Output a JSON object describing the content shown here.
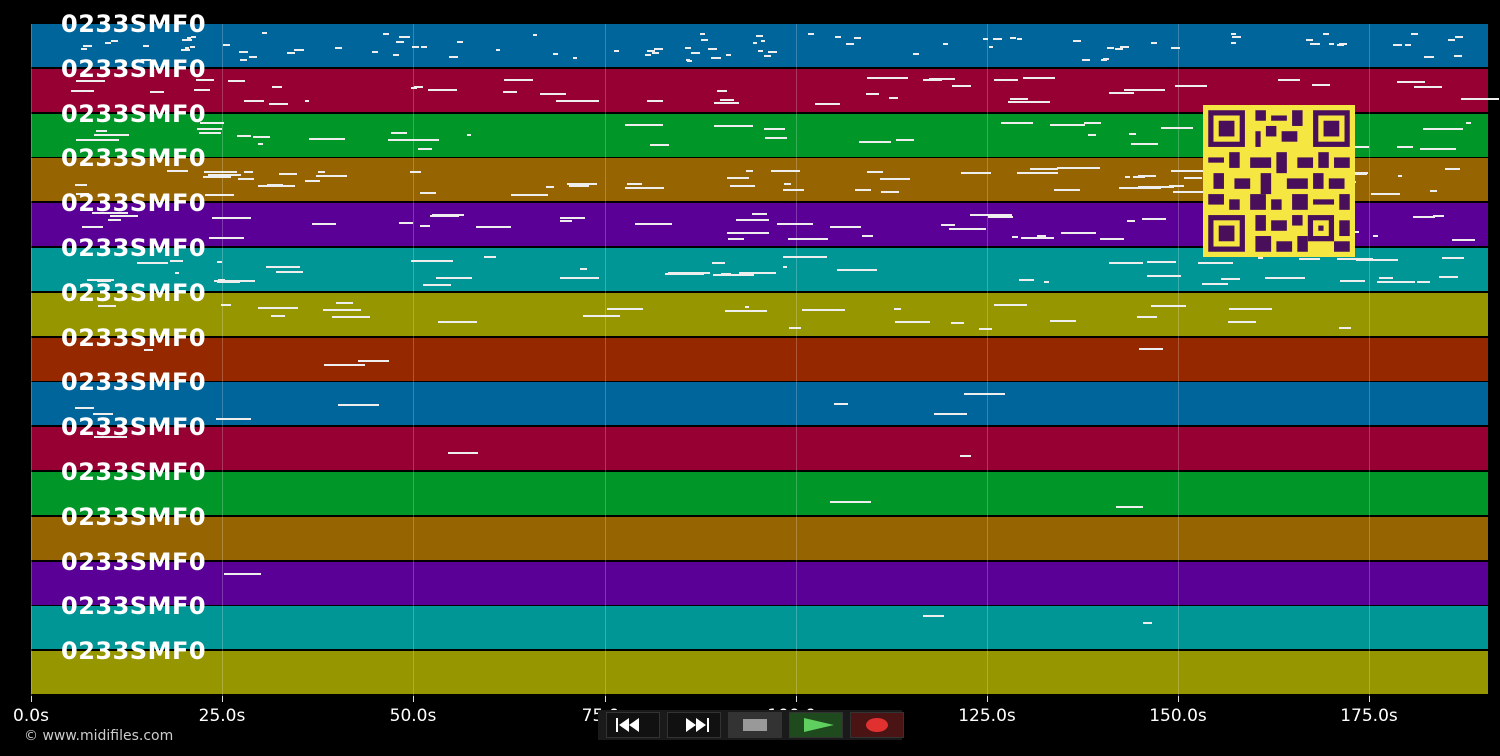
{
  "tracks": [
    {
      "label": "0233SMF0",
      "color": "#00659a"
    },
    {
      "label": "0233SMF0",
      "color": "#960032"
    },
    {
      "label": "0233SMF0",
      "color": "#009628"
    },
    {
      "label": "0233SMF0",
      "color": "#966400"
    },
    {
      "label": "0233SMF0",
      "color": "#5a0096"
    },
    {
      "label": "0233SMF0",
      "color": "#009696"
    },
    {
      "label": "0233SMF0",
      "color": "#969600"
    },
    {
      "label": "0233SMF0",
      "color": "#962800"
    },
    {
      "label": "0233SMF0",
      "color": "#00659a"
    },
    {
      "label": "0233SMF0",
      "color": "#960032"
    },
    {
      "label": "0233SMF0",
      "color": "#009628"
    },
    {
      "label": "0233SMF0",
      "color": "#966400"
    },
    {
      "label": "0233SMF0",
      "color": "#5a0096"
    },
    {
      "label": "0233SMF0",
      "color": "#009696"
    },
    {
      "label": "0233SMF0",
      "color": "#969600"
    }
  ],
  "time_axis": {
    "max_seconds": 190.5,
    "ticks": [
      {
        "value": 0,
        "label": "0.0s"
      },
      {
        "value": 25,
        "label": "25.0s"
      },
      {
        "value": 50,
        "label": "50.0s"
      },
      {
        "value": 75,
        "label": "75.0s"
      },
      {
        "value": 100,
        "label": "100.0s"
      },
      {
        "value": 125,
        "label": "125.0s"
      },
      {
        "value": 150,
        "label": "150.0s"
      },
      {
        "value": 175,
        "label": "175.0s"
      }
    ]
  },
  "copyright": "© www.midifiles.com",
  "controls": [
    {
      "name": "rewind-button",
      "icon": "rewind-icon"
    },
    {
      "name": "fast-forward-button",
      "icon": "fast-forward-icon"
    },
    {
      "name": "stop-button",
      "icon": "stop-icon"
    },
    {
      "name": "play-button",
      "icon": "play-icon"
    },
    {
      "name": "record-button",
      "icon": "record-icon"
    }
  ],
  "qr_icon": "qr-code-icon"
}
